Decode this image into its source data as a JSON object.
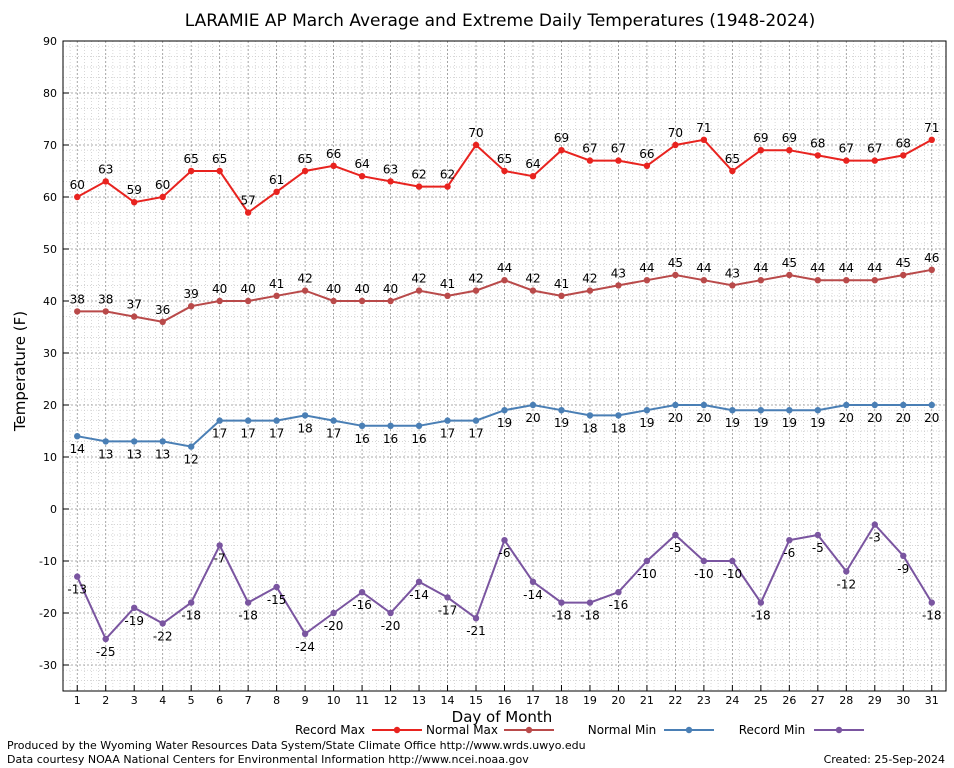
{
  "chart_data": {
    "type": "line",
    "title": "LARAMIE AP March Average and Extreme Daily Temperatures (1948-2024)",
    "xlabel": "Day of Month",
    "ylabel": "Temperature (F)",
    "x": [
      1,
      2,
      3,
      4,
      5,
      6,
      7,
      8,
      9,
      10,
      11,
      12,
      13,
      14,
      15,
      16,
      17,
      18,
      19,
      20,
      21,
      22,
      23,
      24,
      25,
      26,
      27,
      28,
      29,
      30,
      31
    ],
    "xlim": [
      0.5,
      31.5
    ],
    "ylim": [
      -35,
      90
    ],
    "yticks": [
      -30,
      -20,
      -10,
      0,
      10,
      20,
      30,
      40,
      50,
      60,
      70,
      80,
      90
    ],
    "grid": true,
    "legend_position": "bottom",
    "series": [
      {
        "name": "Record Max",
        "color": "#e8231f",
        "label_side": "above",
        "values": [
          60,
          63,
          59,
          60,
          65,
          65,
          57,
          61,
          65,
          66,
          64,
          63,
          62,
          62,
          70,
          65,
          64,
          69,
          67,
          67,
          66,
          70,
          71,
          65,
          69,
          69,
          68,
          67,
          67,
          68,
          71
        ]
      },
      {
        "name": "Normal Max",
        "color": "#b94a4a",
        "label_side": "above",
        "values": [
          38,
          38,
          37,
          36,
          39,
          40,
          40,
          41,
          42,
          40,
          40,
          40,
          42,
          41,
          42,
          44,
          42,
          41,
          42,
          43,
          44,
          45,
          44,
          43,
          44,
          45,
          44,
          44,
          44,
          45,
          46
        ]
      },
      {
        "name": "Normal Min",
        "color": "#4a7fb5",
        "label_side": "below",
        "values": [
          14,
          13,
          13,
          13,
          12,
          17,
          17,
          17,
          18,
          17,
          16,
          16,
          16,
          17,
          17,
          19,
          20,
          19,
          18,
          18,
          19,
          20,
          20,
          19,
          19,
          19,
          19,
          20,
          20,
          20,
          20
        ]
      },
      {
        "name": "Record Min",
        "color": "#7a55a0",
        "label_side": "below",
        "values": [
          -13,
          -25,
          -19,
          -22,
          -18,
          -7,
          -18,
          -15,
          -24,
          -20,
          -16,
          -20,
          -14,
          -17,
          -21,
          -6,
          -14,
          -18,
          -18,
          -16,
          -10,
          -5,
          -10,
          -10,
          -18,
          -6,
          -5,
          -12,
          -3,
          -9,
          -18
        ]
      }
    ]
  },
  "footer": {
    "credit_line1": "Produced by the Wyoming Water Resources Data System/State Climate Office http://www.wrds.uwyo.edu",
    "credit_line2": "Data courtesy NOAA National Centers for Environmental Information http://www.ncei.noaa.gov",
    "created": "Created:  25-Sep-2024"
  }
}
